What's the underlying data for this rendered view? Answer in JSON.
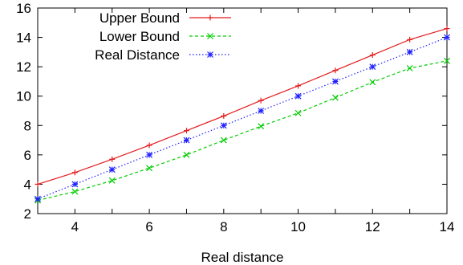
{
  "chart_data": {
    "type": "line",
    "title": "",
    "xlabel": "Real distance",
    "ylabel": "",
    "xlim": [
      3,
      14
    ],
    "ylim": [
      2,
      16
    ],
    "xticks": [
      "4",
      "6",
      "8",
      "10",
      "12",
      "14"
    ],
    "yticks": [
      "2",
      "4",
      "6",
      "8",
      "10",
      "12",
      "14",
      "16"
    ],
    "grid": false,
    "legend_position": "top-left",
    "x": [
      3,
      4,
      5,
      6,
      7,
      8,
      9,
      10,
      11,
      12,
      13,
      14
    ],
    "series": [
      {
        "name": "Upper Bound",
        "color": "#e41a1c",
        "line_style": "solid",
        "marker": "plus",
        "values": [
          4.0,
          4.8,
          5.7,
          6.65,
          7.65,
          8.65,
          9.7,
          10.7,
          11.75,
          12.8,
          13.85,
          14.6
        ]
      },
      {
        "name": "Lower Bound",
        "color": "#00cc00",
        "line_style": "dashed",
        "marker": "cross",
        "values": [
          2.9,
          3.5,
          4.25,
          5.1,
          6.0,
          7.0,
          7.95,
          8.85,
          9.9,
          10.95,
          11.9,
          12.4
        ]
      },
      {
        "name": "Real Distance",
        "color": "#1f1fff",
        "line_style": "dotted",
        "marker": "star",
        "values": [
          3,
          4,
          5,
          6,
          7,
          8,
          9,
          10,
          11,
          12,
          13,
          14
        ]
      }
    ]
  }
}
